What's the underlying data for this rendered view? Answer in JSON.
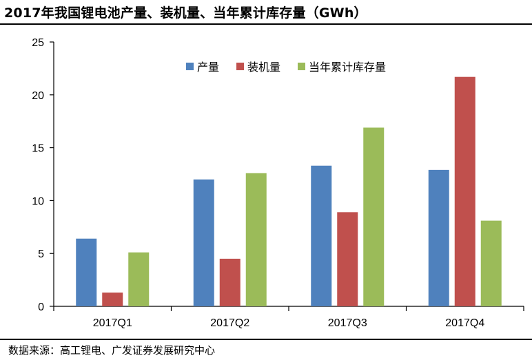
{
  "header": {
    "title": "2017年我国锂电池产量、装机量、当年累计库存量（GWh）"
  },
  "footer": {
    "source": "数据来源：高工锂电、广发证券发展研究中心"
  },
  "chart_data": {
    "type": "bar",
    "title": "2017年我国锂电池产量、装机量、当年累计库存量（GWh）",
    "xlabel": "",
    "ylabel": "",
    "ylim": [
      0,
      25
    ],
    "yticks": [
      0,
      5,
      10,
      15,
      20,
      25
    ],
    "legend_position": "top-right",
    "grid": false,
    "categories": [
      "2017Q1",
      "2017Q2",
      "2017Q3",
      "2017Q4"
    ],
    "series": [
      {
        "name": "产量",
        "color": "#4F81BD",
        "values": [
          6.4,
          12.0,
          13.3,
          12.9
        ]
      },
      {
        "name": "装机量",
        "color": "#C0504D",
        "values": [
          1.3,
          4.5,
          8.9,
          21.7
        ]
      },
      {
        "name": "当年累计库存量",
        "color": "#9BBB59",
        "values": [
          5.1,
          12.6,
          16.9,
          8.1
        ]
      }
    ]
  }
}
